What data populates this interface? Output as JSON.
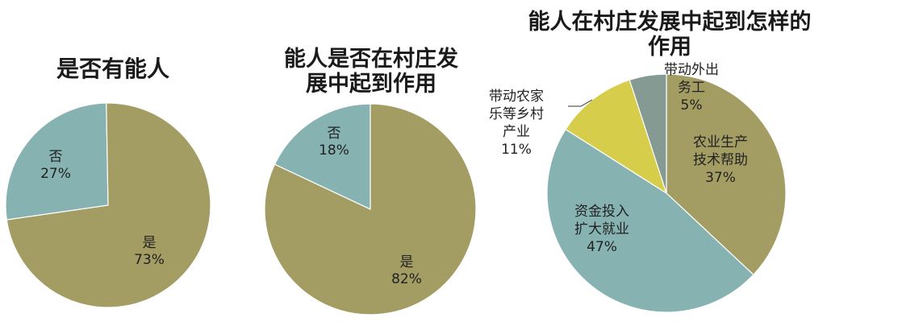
{
  "colors": {
    "olive": "#a39c63",
    "teal": "#87b2b2",
    "yellow": "#d6cd4a",
    "gray_green": "#849a92"
  },
  "chart_data": [
    {
      "type": "pie",
      "title": "是否有能人",
      "slices": [
        {
          "label_lines": [
            "否",
            "27%"
          ],
          "value": 27,
          "color": "#87b2b2"
        },
        {
          "label_lines": [
            "是",
            "73%"
          ],
          "value": 73,
          "color": "#a39c63"
        }
      ]
    },
    {
      "type": "pie",
      "title_lines": [
        "能人是否在村庄发",
        "展中起到作用"
      ],
      "slices": [
        {
          "label_lines": [
            "否",
            "18%"
          ],
          "value": 18,
          "color": "#87b2b2"
        },
        {
          "label_lines": [
            "是",
            "82%"
          ],
          "value": 82,
          "color": "#a39c63"
        }
      ]
    },
    {
      "type": "pie",
      "title_lines": [
        "能人在村庄发展中起到怎样的",
        "作用"
      ],
      "slices": [
        {
          "label_lines": [
            "农业生产",
            "技术帮助",
            "37%"
          ],
          "value": 37,
          "color": "#a39c63"
        },
        {
          "label_lines": [
            "资金投入",
            "扩大就业",
            "47%"
          ],
          "value": 47,
          "color": "#87b2b2"
        },
        {
          "label_lines": [
            "带动农家",
            "乐等乡村",
            "产业",
            "11%"
          ],
          "value": 11,
          "color": "#d6cd4a"
        },
        {
          "label_lines": [
            "带动外出",
            "务工",
            "5%"
          ],
          "value": 5,
          "color": "#849a92"
        }
      ]
    }
  ]
}
